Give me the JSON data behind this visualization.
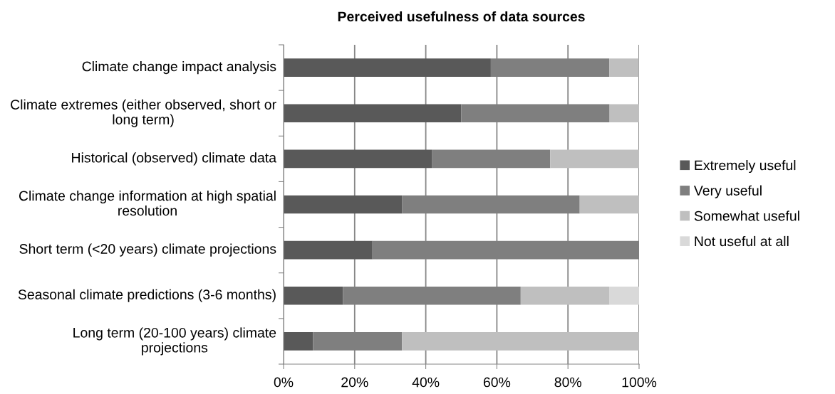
{
  "chart_data": {
    "type": "bar",
    "orientation": "horizontal",
    "stacked": true,
    "title": "Perceived usefulness of data sources",
    "categories": [
      "Climate change impact analysis",
      "Climate extremes (either observed, short or long term)",
      "Historical (observed) climate data",
      "Climate change information at high spatial resolution",
      "Short term (<20 years) climate projections",
      "Seasonal climate predictions (3-6 months)",
      "Long term (20-100 years) climate projections"
    ],
    "series": [
      {
        "name": "Extremely useful",
        "color": "#595959",
        "values": [
          58.3,
          50,
          41.7,
          33.3,
          25,
          16.7,
          8.3
        ]
      },
      {
        "name": "Very useful",
        "color": "#7f7f7f",
        "values": [
          33.3,
          41.7,
          33.3,
          50,
          75,
          50,
          25
        ]
      },
      {
        "name": "Somewhat useful",
        "color": "#bfbfbf",
        "values": [
          8.3,
          8.3,
          25,
          16.7,
          0,
          25,
          66.7
        ]
      },
      {
        "name": "Not useful at all",
        "color": "#d9d9d9",
        "values": [
          0,
          0,
          0,
          0,
          0,
          8.3,
          0
        ]
      }
    ],
    "xlim": [
      0,
      100
    ],
    "xticks": [
      {
        "value": 0,
        "label": "0%"
      },
      {
        "value": 20,
        "label": "20%"
      },
      {
        "value": 40,
        "label": "40%"
      },
      {
        "value": 60,
        "label": "60%"
      },
      {
        "value": 80,
        "label": "80%"
      },
      {
        "value": 100,
        "label": "100%"
      }
    ],
    "grid": "x",
    "legend": "right"
  }
}
